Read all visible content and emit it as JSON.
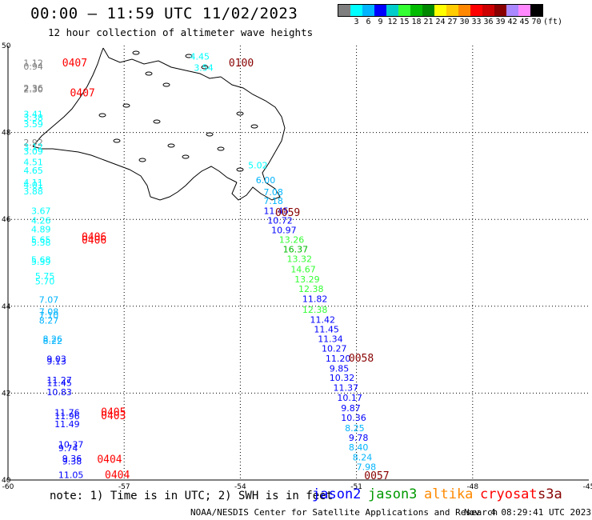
{
  "header": {
    "title": "00:00 — 11:59 UTC 11/02/2023",
    "subtitle": "12 hour collection of altimeter wave heights"
  },
  "legend": {
    "unit": "(ft)",
    "bins": [
      {
        "label": "",
        "color": "#7f7f7f"
      },
      {
        "label": "3",
        "color": "#00ffff"
      },
      {
        "label": "6",
        "color": "#00b4ff"
      },
      {
        "label": "9",
        "color": "#0000ff"
      },
      {
        "label": "12",
        "color": "#00cccc"
      },
      {
        "label": "15",
        "color": "#33ff33"
      },
      {
        "label": "18",
        "color": "#00bb00"
      },
      {
        "label": "21",
        "color": "#008800"
      },
      {
        "label": "24",
        "color": "#ffff00"
      },
      {
        "label": "27",
        "color": "#ffcc00"
      },
      {
        "label": "30",
        "color": "#ff8800"
      },
      {
        "label": "33",
        "color": "#ff0000"
      },
      {
        "label": "36",
        "color": "#cc0000"
      },
      {
        "label": "39",
        "color": "#880000"
      },
      {
        "label": "42",
        "color": "#aa88ff"
      },
      {
        "label": "45",
        "color": "#ff88ff"
      },
      {
        "label": "70",
        "color": "#000000"
      }
    ]
  },
  "chart_data": {
    "type": "scatter",
    "xlim": [
      -60,
      -45
    ],
    "ylim": [
      40,
      50
    ],
    "x_ticks": [
      "-60",
      "-57",
      "-54",
      "-51",
      "-48",
      "-45"
    ],
    "y_ticks": [
      "40",
      "42",
      "44",
      "46",
      "48",
      "50"
    ],
    "grid": true,
    "points": [
      {
        "lon": -59.6,
        "lat": 49.53,
        "text": "1.12",
        "color": "#7f7f7f"
      },
      {
        "lon": -59.6,
        "lat": 49.45,
        "text": "0.94",
        "color": "#7f7f7f"
      },
      {
        "lon": -59.6,
        "lat": 48.95,
        "text": "2.36",
        "color": "#7f7f7f"
      },
      {
        "lon": -59.6,
        "lat": 48.92,
        "text": "2.30",
        "color": "#7f7f7f"
      },
      {
        "lon": -59.6,
        "lat": 48.35,
        "text": "3.41",
        "color": "#00ffff"
      },
      {
        "lon": -59.6,
        "lat": 48.27,
        "text": "3.38",
        "color": "#00ffff"
      },
      {
        "lon": -59.6,
        "lat": 48.12,
        "text": "3.59",
        "color": "#00ffff"
      },
      {
        "lon": -59.6,
        "lat": 47.7,
        "text": "2.92",
        "color": "#7f7f7f"
      },
      {
        "lon": -59.6,
        "lat": 47.6,
        "text": "3.12",
        "color": "#00ffff"
      },
      {
        "lon": -59.6,
        "lat": 47.5,
        "text": "3.09",
        "color": "#00ffff"
      },
      {
        "lon": -59.6,
        "lat": 47.25,
        "text": "4.51",
        "color": "#00ffff"
      },
      {
        "lon": -59.6,
        "lat": 47.05,
        "text": "4.65",
        "color": "#00ffff"
      },
      {
        "lon": -59.6,
        "lat": 46.78,
        "text": "4.11",
        "color": "#00ffff"
      },
      {
        "lon": -59.6,
        "lat": 46.72,
        "text": "4.01",
        "color": "#00ffff"
      },
      {
        "lon": -59.6,
        "lat": 46.57,
        "text": "3.88",
        "color": "#00ffff"
      },
      {
        "lon": -59.4,
        "lat": 46.12,
        "text": "3.67",
        "color": "#00ffff"
      },
      {
        "lon": -59.4,
        "lat": 45.9,
        "text": "4.26",
        "color": "#00ffff"
      },
      {
        "lon": -59.4,
        "lat": 45.7,
        "text": "4.89",
        "color": "#00ffff"
      },
      {
        "lon": -59.4,
        "lat": 45.46,
        "text": "5.65",
        "color": "#00ffff"
      },
      {
        "lon": -59.4,
        "lat": 45.4,
        "text": "5.38",
        "color": "#00ffff"
      },
      {
        "lon": -59.4,
        "lat": 45.0,
        "text": "5.68",
        "color": "#00ffff"
      },
      {
        "lon": -59.4,
        "lat": 44.95,
        "text": "5.39",
        "color": "#00ffff"
      },
      {
        "lon": -59.3,
        "lat": 44.62,
        "text": "5.75",
        "color": "#00ffff"
      },
      {
        "lon": -59.3,
        "lat": 44.5,
        "text": "5.70",
        "color": "#00ffff"
      },
      {
        "lon": -59.2,
        "lat": 44.08,
        "text": "7.07",
        "color": "#00b4ff"
      },
      {
        "lon": -59.2,
        "lat": 43.8,
        "text": "7.08",
        "color": "#00b4ff"
      },
      {
        "lon": -59.2,
        "lat": 43.72,
        "text": "7.10",
        "color": "#00b4ff"
      },
      {
        "lon": -59.2,
        "lat": 43.6,
        "text": "8.27",
        "color": "#00b4ff"
      },
      {
        "lon": -59.1,
        "lat": 43.18,
        "text": "8.26",
        "color": "#00b4ff"
      },
      {
        "lon": -59.1,
        "lat": 43.13,
        "text": "8.22",
        "color": "#00b4ff"
      },
      {
        "lon": -59.0,
        "lat": 42.72,
        "text": "9.03",
        "color": "#0000ff"
      },
      {
        "lon": -59.0,
        "lat": 42.66,
        "text": "9.13",
        "color": "#0000ff"
      },
      {
        "lon": -59.0,
        "lat": 42.23,
        "text": "11.27",
        "color": "#0000ff"
      },
      {
        "lon": -59.0,
        "lat": 42.16,
        "text": "11.45",
        "color": "#0000ff"
      },
      {
        "lon": -59.0,
        "lat": 41.95,
        "text": "10.83",
        "color": "#0000ff"
      },
      {
        "lon": -58.8,
        "lat": 41.48,
        "text": "11.76",
        "color": "#0000ff"
      },
      {
        "lon": -58.8,
        "lat": 41.4,
        "text": "11.96",
        "color": "#0000ff"
      },
      {
        "lon": -58.8,
        "lat": 41.22,
        "text": "11.49",
        "color": "#0000ff"
      },
      {
        "lon": -58.7,
        "lat": 40.75,
        "text": "10.37",
        "color": "#0000ff"
      },
      {
        "lon": -58.7,
        "lat": 40.66,
        "text": "9.74",
        "color": "#0000ff"
      },
      {
        "lon": -58.6,
        "lat": 40.42,
        "text": "9.36",
        "color": "#0000ff"
      },
      {
        "lon": -58.6,
        "lat": 40.36,
        "text": "9.38",
        "color": "#0000ff"
      },
      {
        "lon": -58.7,
        "lat": 40.05,
        "text": "11.05",
        "color": "#0000ff"
      },
      {
        "lon": -55.3,
        "lat": 49.68,
        "text": "4.45",
        "color": "#00ffff"
      },
      {
        "lon": -55.2,
        "lat": 49.42,
        "text": "3.54",
        "color": "#00ffff"
      },
      {
        "lon": -53.8,
        "lat": 47.17,
        "text": "5.02",
        "color": "#00ffff"
      },
      {
        "lon": -53.6,
        "lat": 46.83,
        "text": "6.00",
        "color": "#00b4ff"
      },
      {
        "lon": -53.4,
        "lat": 46.56,
        "text": "7.08",
        "color": "#00b4ff"
      },
      {
        "lon": -53.4,
        "lat": 46.35,
        "text": "7.18",
        "color": "#00b4ff"
      },
      {
        "lon": -53.4,
        "lat": 46.12,
        "text": "11.45",
        "color": "#0000ff"
      },
      {
        "lon": -53.3,
        "lat": 45.9,
        "text": "10.72",
        "color": "#0000ff"
      },
      {
        "lon": -53.2,
        "lat": 45.68,
        "text": "10.97",
        "color": "#0000ff"
      },
      {
        "lon": -53.0,
        "lat": 45.46,
        "text": "13.26",
        "color": "#33ff33"
      },
      {
        "lon": -52.9,
        "lat": 45.24,
        "text": "16.37",
        "color": "#00bb00"
      },
      {
        "lon": -52.8,
        "lat": 45.02,
        "text": "13.32",
        "color": "#33ff33"
      },
      {
        "lon": -52.7,
        "lat": 44.78,
        "text": "14.67",
        "color": "#33ff33"
      },
      {
        "lon": -52.6,
        "lat": 44.55,
        "text": "13.29",
        "color": "#33ff33"
      },
      {
        "lon": -52.5,
        "lat": 44.33,
        "text": "12.38",
        "color": "#33ff33"
      },
      {
        "lon": -52.4,
        "lat": 44.1,
        "text": "11.82",
        "color": "#0000ff"
      },
      {
        "lon": -52.4,
        "lat": 43.85,
        "text": "12.38",
        "color": "#33ff33"
      },
      {
        "lon": -52.2,
        "lat": 43.62,
        "text": "11.42",
        "color": "#0000ff"
      },
      {
        "lon": -52.1,
        "lat": 43.4,
        "text": "11.45",
        "color": "#0000ff"
      },
      {
        "lon": -52.0,
        "lat": 43.18,
        "text": "11.34",
        "color": "#0000ff"
      },
      {
        "lon": -51.9,
        "lat": 42.96,
        "text": "10.27",
        "color": "#0000ff"
      },
      {
        "lon": -51.8,
        "lat": 42.73,
        "text": "11.20",
        "color": "#0000ff"
      },
      {
        "lon": -51.7,
        "lat": 42.5,
        "text": "9.85",
        "color": "#0000ff"
      },
      {
        "lon": -51.7,
        "lat": 42.28,
        "text": "10.32",
        "color": "#0000ff"
      },
      {
        "lon": -51.6,
        "lat": 42.05,
        "text": "11.37",
        "color": "#0000ff"
      },
      {
        "lon": -51.5,
        "lat": 41.82,
        "text": "10.17",
        "color": "#0000ff"
      },
      {
        "lon": -51.4,
        "lat": 41.58,
        "text": "9.87",
        "color": "#0000ff"
      },
      {
        "lon": -51.4,
        "lat": 41.36,
        "text": "10.36",
        "color": "#0000ff"
      },
      {
        "lon": -51.3,
        "lat": 41.12,
        "text": "8.25",
        "color": "#00b4ff"
      },
      {
        "lon": -51.2,
        "lat": 40.9,
        "text": "9.78",
        "color": "#0000ff"
      },
      {
        "lon": -51.2,
        "lat": 40.68,
        "text": "8.40",
        "color": "#00b4ff"
      },
      {
        "lon": -51.1,
        "lat": 40.45,
        "text": "8.24",
        "color": "#00b4ff"
      },
      {
        "lon": -51.0,
        "lat": 40.23,
        "text": "7.98",
        "color": "#00b4ff"
      }
    ],
    "time_labels": [
      {
        "lon": -58.6,
        "lat": 49.52,
        "text": "0407",
        "color": "#ff0000"
      },
      {
        "lon": -58.4,
        "lat": 48.83,
        "text": "0407",
        "color": "#ff0000"
      },
      {
        "lon": -54.3,
        "lat": 49.52,
        "text": "0100",
        "color": "#880000"
      },
      {
        "lon": -53.1,
        "lat": 46.08,
        "text": "0059",
        "color": "#880000"
      },
      {
        "lon": -58.1,
        "lat": 45.52,
        "text": "0406",
        "color": "#ff0000"
      },
      {
        "lon": -58.1,
        "lat": 45.44,
        "text": "0406",
        "color": "#ff0000"
      },
      {
        "lon": -51.2,
        "lat": 42.73,
        "text": "0058",
        "color": "#880000"
      },
      {
        "lon": -57.6,
        "lat": 41.48,
        "text": "0405",
        "color": "#ff0000"
      },
      {
        "lon": -57.6,
        "lat": 41.4,
        "text": "0403",
        "color": "#ff0000"
      },
      {
        "lon": -57.7,
        "lat": 40.4,
        "text": "0404",
        "color": "#ff0000"
      },
      {
        "lon": -57.5,
        "lat": 40.04,
        "text": "0404",
        "color": "#ff0000"
      },
      {
        "lon": -50.8,
        "lat": 40.02,
        "text": "0057",
        "color": "#880000"
      }
    ]
  },
  "footer": {
    "note": "note: 1) Time is in UTC; 2) SWH is in feet",
    "credit": "NOAA/NESDIS Center for Satellite Applications and Research",
    "date": "Nov  4 08:29:41 UTC 2023",
    "satellites": [
      {
        "name": "jason2",
        "color": "#0000ff"
      },
      {
        "name": "jason3",
        "color": "#009900"
      },
      {
        "name": "altika",
        "color": "#ff8800"
      },
      {
        "name": "cryosat",
        "color": "#ff0000"
      },
      {
        "name": "s3a",
        "color": "#880000"
      }
    ]
  }
}
